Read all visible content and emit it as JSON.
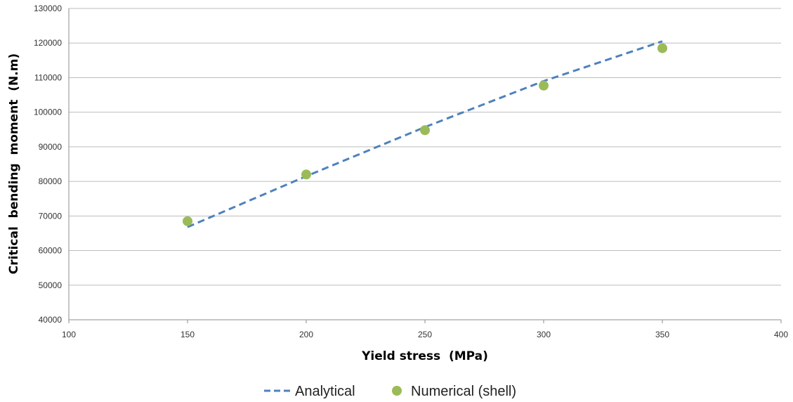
{
  "chart_data": {
    "type": "scatter",
    "title": "",
    "xlabel": "Yield stress  (MPa)",
    "ylabel": "Critical  bending  moment  (N.m)",
    "xlim": [
      100,
      400
    ],
    "ylim": [
      40000,
      130000
    ],
    "x_ticks": [
      100,
      150,
      200,
      250,
      300,
      350,
      400
    ],
    "y_ticks": [
      40000,
      50000,
      60000,
      70000,
      80000,
      90000,
      100000,
      110000,
      120000,
      130000
    ],
    "grid": "horizontal",
    "legend_position": "bottom",
    "series": [
      {
        "name": "Analytical",
        "style": "dashed-line",
        "color": "#4f81bd",
        "x": [
          150,
          200,
          250,
          300,
          350
        ],
        "y": [
          66800,
          81500,
          95700,
          109000,
          120500
        ]
      },
      {
        "name": "Numerical (shell)",
        "style": "marker",
        "color": "#9bbb59",
        "x": [
          150,
          200,
          250,
          300,
          350
        ],
        "y": [
          68500,
          82000,
          94800,
          107700,
          118500
        ]
      }
    ]
  }
}
